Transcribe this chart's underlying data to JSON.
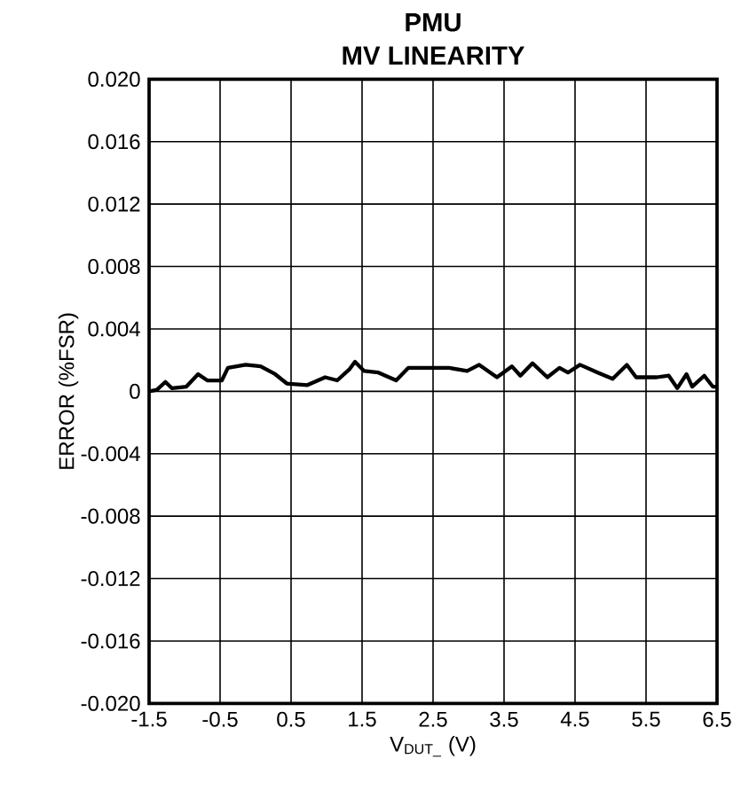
{
  "chart_data": {
    "type": "line",
    "title": "PMU",
    "subtitle": "MV LINEARITY",
    "xlabel": "V$_{DUT_}$ (V)",
    "ylabel": "ERROR (%FSR)",
    "x": [
      -1.5,
      -1.39,
      -1.27,
      -1.18,
      -0.975,
      -0.81,
      -0.68,
      -0.475,
      -0.39,
      -0.14,
      0.07,
      0.275,
      0.44,
      0.73,
      0.98,
      1.15,
      1.32,
      1.4,
      1.53,
      1.73,
      1.98,
      2.15,
      2.48,
      2.73,
      2.98,
      3.15,
      3.4,
      3.61,
      3.73,
      3.9,
      4.11,
      4.28,
      4.4,
      4.57,
      4.82,
      5.03,
      5.23,
      5.36,
      5.65,
      5.82,
      5.94,
      6.07,
      6.15,
      6.32,
      6.44,
      6.5
    ],
    "series": [
      {
        "color": "#000000",
        "values": [
          0,
          0.0001,
          0.0006,
          0.0002,
          0.0003,
          0.0011,
          0.0007,
          0.0007,
          0.0015,
          0.0017,
          0.0016,
          0.0011,
          0.0005,
          0.0004,
          0.0009,
          0.0007,
          0.0014,
          0.0019,
          0.0013,
          0.0012,
          0.0007,
          0.0015,
          0.0015,
          0.0015,
          0.0013,
          0.0017,
          0.0009,
          0.0016,
          0.001,
          0.0018,
          0.0009,
          0.0015,
          0.0012,
          0.0017,
          0.0012,
          0.0008,
          0.0017,
          0.0009,
          0.0009,
          0.001,
          0.0002,
          0.0011,
          0.0003,
          0.001,
          0.0003,
          0.0003
        ]
      }
    ],
    "xlim": [
      -1.5,
      6.5
    ],
    "xticks": [
      -1.5,
      -0.5,
      0.5,
      1.5,
      2.5,
      3.5,
      4.5,
      5.5,
      6.5
    ],
    "ylim": [
      -0.02,
      0.02
    ],
    "yticks": [
      {
        "value": -0.02,
        "label": "-0.020"
      },
      {
        "value": -0.016,
        "label": "-0.016"
      },
      {
        "value": -0.012,
        "label": "-0.012"
      },
      {
        "value": -0.008,
        "label": "-0.008"
      },
      {
        "value": -0.004,
        "label": "-0.004"
      },
      {
        "value": 0,
        "label": "0"
      },
      {
        "value": 0.004,
        "label": "0.004"
      },
      {
        "value": 0.008,
        "label": "0.008"
      },
      {
        "value": 0.012,
        "label": "0.012"
      },
      {
        "value": 0.016,
        "label": "0.016"
      },
      {
        "value": 0.02,
        "label": "0.020"
      }
    ],
    "grid": true,
    "line_style": "solid",
    "marker": "none"
  }
}
